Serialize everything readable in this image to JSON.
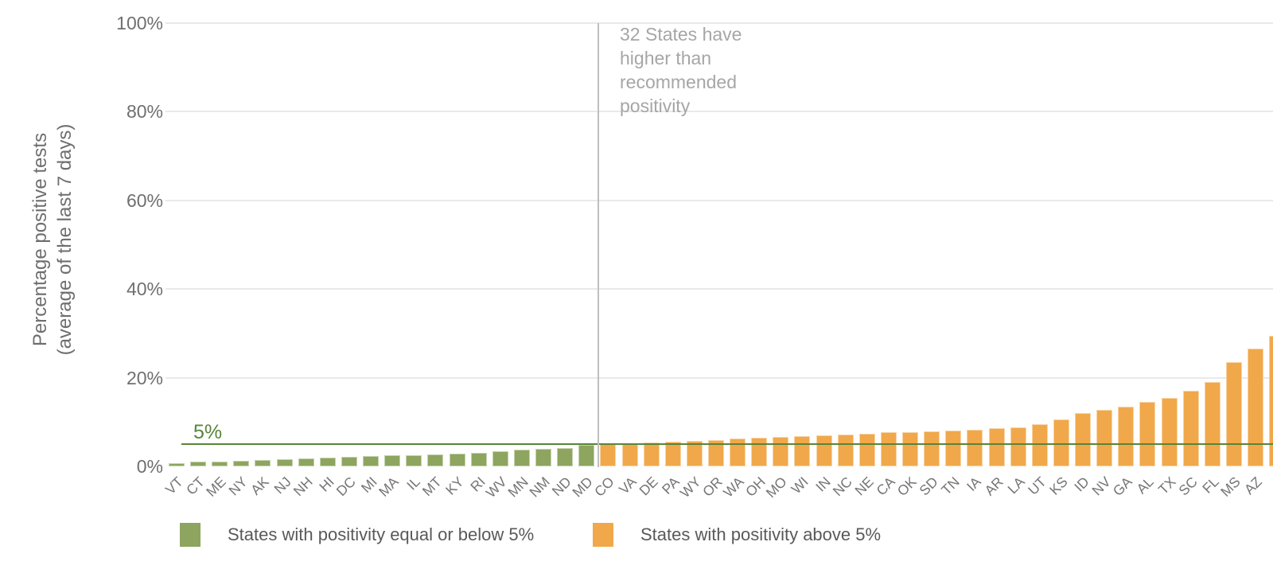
{
  "chart_data": {
    "type": "bar",
    "title": "",
    "ylabel_line1": "Percentage positive tests",
    "ylabel_line2": "(average of the last 7 days)",
    "ylim": [
      0,
      100
    ],
    "grid": true,
    "legend_position": "bottom",
    "y_ticks": [
      {
        "label": "0%",
        "value": 0
      },
      {
        "label": "20%",
        "value": 20
      },
      {
        "label": "40%",
        "value": 40
      },
      {
        "label": "60%",
        "value": 60
      },
      {
        "label": "80%",
        "value": 80
      },
      {
        "label": "100%",
        "value": 100
      }
    ],
    "reference_line": {
      "label": "5%",
      "value": 5,
      "color": "#588539"
    },
    "separator_after_index": 19,
    "separator_annotation": "32 States have\nhigher than\nrecommended\npositivity",
    "threshold": 5,
    "colors": {
      "below": "#8DA55E",
      "above": "#F0A84A"
    },
    "categories": [
      "VT",
      "CT",
      "ME",
      "NY",
      "AK",
      "NJ",
      "NH",
      "HI",
      "DC",
      "MI",
      "MA",
      "IL",
      "MT",
      "KY",
      "RI",
      "WV",
      "MN",
      "NM",
      "ND",
      "MD",
      "CO",
      "VA",
      "DE",
      "PA",
      "WY",
      "OR",
      "WA",
      "OH",
      "MO",
      "WI",
      "IN",
      "NC",
      "NE",
      "CA",
      "OK",
      "SD",
      "TN",
      "IA",
      "AR",
      "LA",
      "UT",
      "KS",
      "ID",
      "NV",
      "GA",
      "AL",
      "TX",
      "SC",
      "FL",
      "MS",
      "AZ",
      ""
    ],
    "values": [
      0.8,
      1.0,
      1.1,
      1.3,
      1.5,
      1.6,
      1.8,
      1.9,
      2.1,
      2.3,
      2.5,
      2.6,
      2.7,
      2.9,
      3.0,
      3.4,
      3.8,
      3.9,
      4.1,
      4.8,
      5.1,
      5.2,
      5.4,
      5.6,
      5.7,
      6.0,
      6.2,
      6.4,
      6.6,
      6.9,
      7.0,
      7.2,
      7.3,
      7.7,
      7.8,
      7.9,
      8.1,
      8.3,
      8.6,
      8.8,
      9.5,
      10.5,
      12.0,
      12.8,
      13.4,
      14.5,
      15.5,
      17.0,
      19.0,
      23.5,
      26.5,
      29.5
    ],
    "legend": [
      {
        "label": "States with positivity equal or below 5%",
        "color": "#8DA55E"
      },
      {
        "label": "States with positivity above 5%",
        "color": "#F0A84A"
      }
    ]
  }
}
